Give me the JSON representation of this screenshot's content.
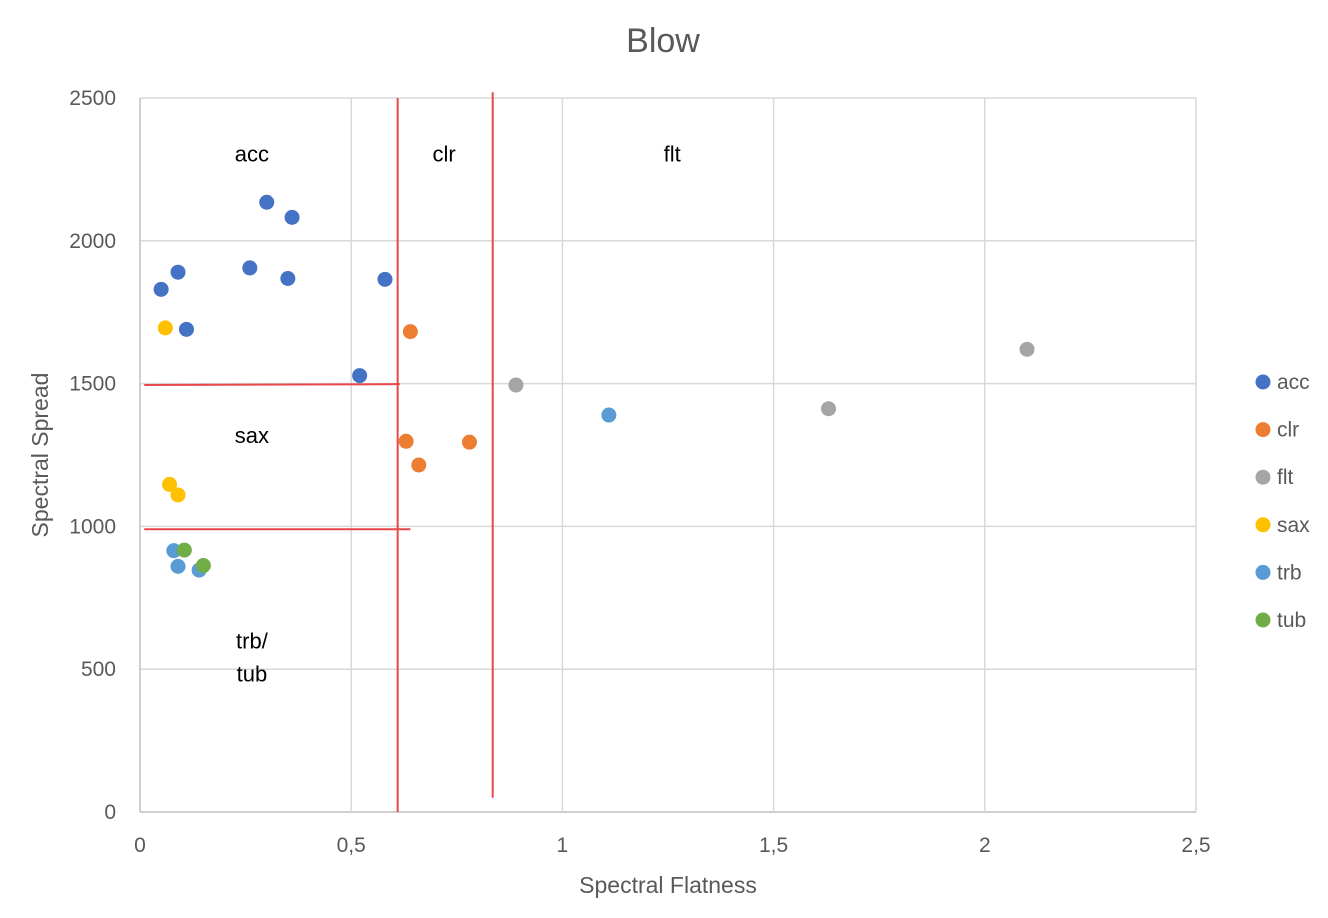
{
  "chart_data": {
    "type": "scatter",
    "title": "Blow",
    "xlabel": "Spectral Flatness",
    "ylabel": "Spectral Spread",
    "xlim": [
      0,
      2.5
    ],
    "ylim": [
      0,
      2500
    ],
    "x_ticks": [
      {
        "value": 0,
        "label": "0"
      },
      {
        "value": 0.5,
        "label": "0,5"
      },
      {
        "value": 1,
        "label": "1"
      },
      {
        "value": 1.5,
        "label": "1,5"
      },
      {
        "value": 2,
        "label": "2"
      },
      {
        "value": 2.5,
        "label": "2,5"
      }
    ],
    "y_ticks": [
      {
        "value": 0,
        "label": "0"
      },
      {
        "value": 500,
        "label": "500"
      },
      {
        "value": 1000,
        "label": "1000"
      },
      {
        "value": 1500,
        "label": "1500"
      },
      {
        "value": 2000,
        "label": "2000"
      },
      {
        "value": 2500,
        "label": "2500"
      }
    ],
    "grid": "on",
    "legend_position": "right",
    "series": [
      {
        "name": "acc",
        "color": "#4472c4",
        "points": [
          {
            "x": 0.05,
            "y": 1830
          },
          {
            "x": 0.09,
            "y": 1890
          },
          {
            "x": 0.11,
            "y": 1690
          },
          {
            "x": 0.26,
            "y": 1905
          },
          {
            "x": 0.3,
            "y": 2135
          },
          {
            "x": 0.35,
            "y": 1868
          },
          {
            "x": 0.36,
            "y": 2082
          },
          {
            "x": 0.52,
            "y": 1528
          },
          {
            "x": 0.58,
            "y": 1865
          }
        ]
      },
      {
        "name": "clr",
        "color": "#ed7d31",
        "points": [
          {
            "x": 0.64,
            "y": 1682
          },
          {
            "x": 0.63,
            "y": 1298
          },
          {
            "x": 0.66,
            "y": 1215
          },
          {
            "x": 0.78,
            "y": 1295
          }
        ]
      },
      {
        "name": "flt",
        "color": "#a5a5a5",
        "points": [
          {
            "x": 0.89,
            "y": 1495
          },
          {
            "x": 1.63,
            "y": 1412
          },
          {
            "x": 2.1,
            "y": 1620
          }
        ]
      },
      {
        "name": "sax",
        "color": "#ffc000",
        "points": [
          {
            "x": 0.06,
            "y": 1695
          },
          {
            "x": 0.07,
            "y": 1147
          },
          {
            "x": 0.09,
            "y": 1110
          }
        ]
      },
      {
        "name": "trb",
        "color": "#5b9bd5",
        "points": [
          {
            "x": 0.08,
            "y": 915
          },
          {
            "x": 0.09,
            "y": 860
          },
          {
            "x": 0.14,
            "y": 847
          },
          {
            "x": 1.11,
            "y": 1390
          }
        ]
      },
      {
        "name": "tub",
        "color": "#70ad47",
        "points": [
          {
            "x": 0.105,
            "y": 917
          },
          {
            "x": 0.15,
            "y": 863
          }
        ]
      }
    ],
    "region_labels": [
      {
        "text": "acc",
        "x": 0.265,
        "y": 2305
      },
      {
        "text": "clr",
        "x": 0.72,
        "y": 2305
      },
      {
        "text": "flt",
        "x": 1.26,
        "y": 2305
      },
      {
        "text": "sax",
        "x": 0.265,
        "y": 1320
      },
      {
        "text": "trb/",
        "x": 0.265,
        "y": 600
      },
      {
        "text": "tub",
        "x": 0.265,
        "y": 485
      }
    ],
    "dividers": [
      {
        "x1": 0.61,
        "y1": 0,
        "x2": 0.61,
        "y2": 2500
      },
      {
        "x1": 0.835,
        "y1": 50,
        "x2": 0.835,
        "y2": 2520
      },
      {
        "x1": 0.01,
        "y1": 1495,
        "x2": 0.615,
        "y2": 1498
      },
      {
        "x1": 0.01,
        "y1": 990,
        "x2": 0.64,
        "y2": 990
      }
    ]
  }
}
